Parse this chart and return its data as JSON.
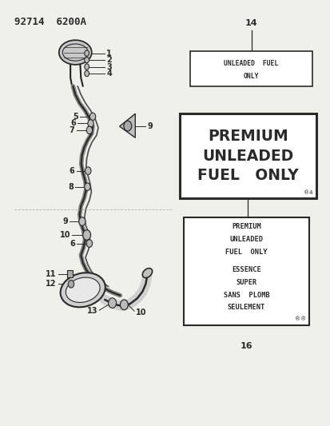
{
  "title_code": "92714  6200A",
  "background_color": "#f0f0eb",
  "diagram_color": "#2a2a2a",
  "label14_lines": [
    "UNLEADED  FUEL",
    "ONLY"
  ],
  "label15_lines": [
    "PREMIUM",
    "UNLEADED",
    "FUEL   ONLY"
  ],
  "label15_small": "®4",
  "label16_lines": [
    "PREMIUM",
    "UNLEADED",
    "FUEL  ONLY",
    "ESSENCE",
    "SUPER",
    "SANS  PLOMB",
    "SEULEMENT"
  ],
  "label16_small": "®®"
}
